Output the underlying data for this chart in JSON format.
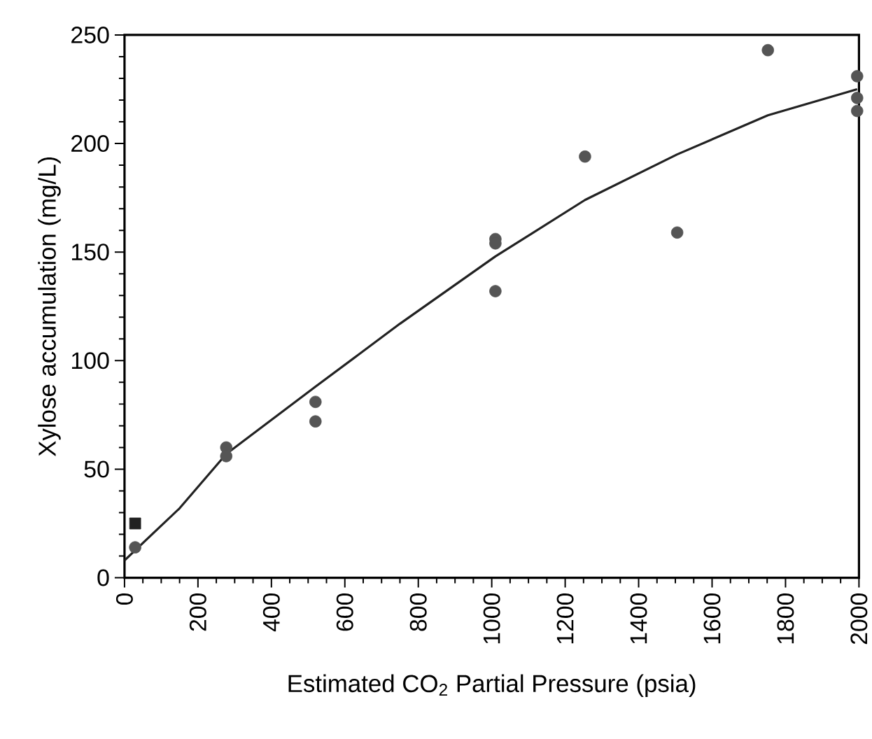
{
  "chart_data": {
    "type": "scatter",
    "xlabel": "Estimated CO$_{2}$ Partial Pressure (psia)",
    "ylabel": "Xylose accumulation (mg/L)",
    "xlim": [
      0,
      2000
    ],
    "xticks": [
      0,
      200,
      400,
      600,
      800,
      1000,
      1200,
      1400,
      1600,
      1800,
      2000
    ],
    "ylim": [
      0,
      250
    ],
    "yticks": [
      0,
      50,
      100,
      150,
      200,
      250
    ],
    "grid": false,
    "series": [
      {
        "marker": "circle",
        "color": "#555555",
        "x": [
          29,
          277,
          277,
          520,
          520,
          1010,
          1010,
          1010,
          1254,
          1505,
          1752,
          1995,
          1995,
          1995
        ],
        "values": [
          14,
          60,
          56,
          81,
          72,
          156,
          154,
          132,
          194,
          159,
          243,
          231,
          221,
          215
        ]
      },
      {
        "marker": "square",
        "color": "#222222",
        "x": [
          29
        ],
        "values": [
          25
        ]
      },
      {
        "type": "line",
        "marker": "none",
        "line_style": "solid",
        "color": "#222222",
        "x": [
          0,
          150,
          277,
          520,
          750,
          1010,
          1254,
          1505,
          1752,
          1995
        ],
        "values": [
          8,
          32,
          57,
          88,
          117,
          148,
          174,
          195,
          213,
          225
        ]
      }
    ]
  }
}
